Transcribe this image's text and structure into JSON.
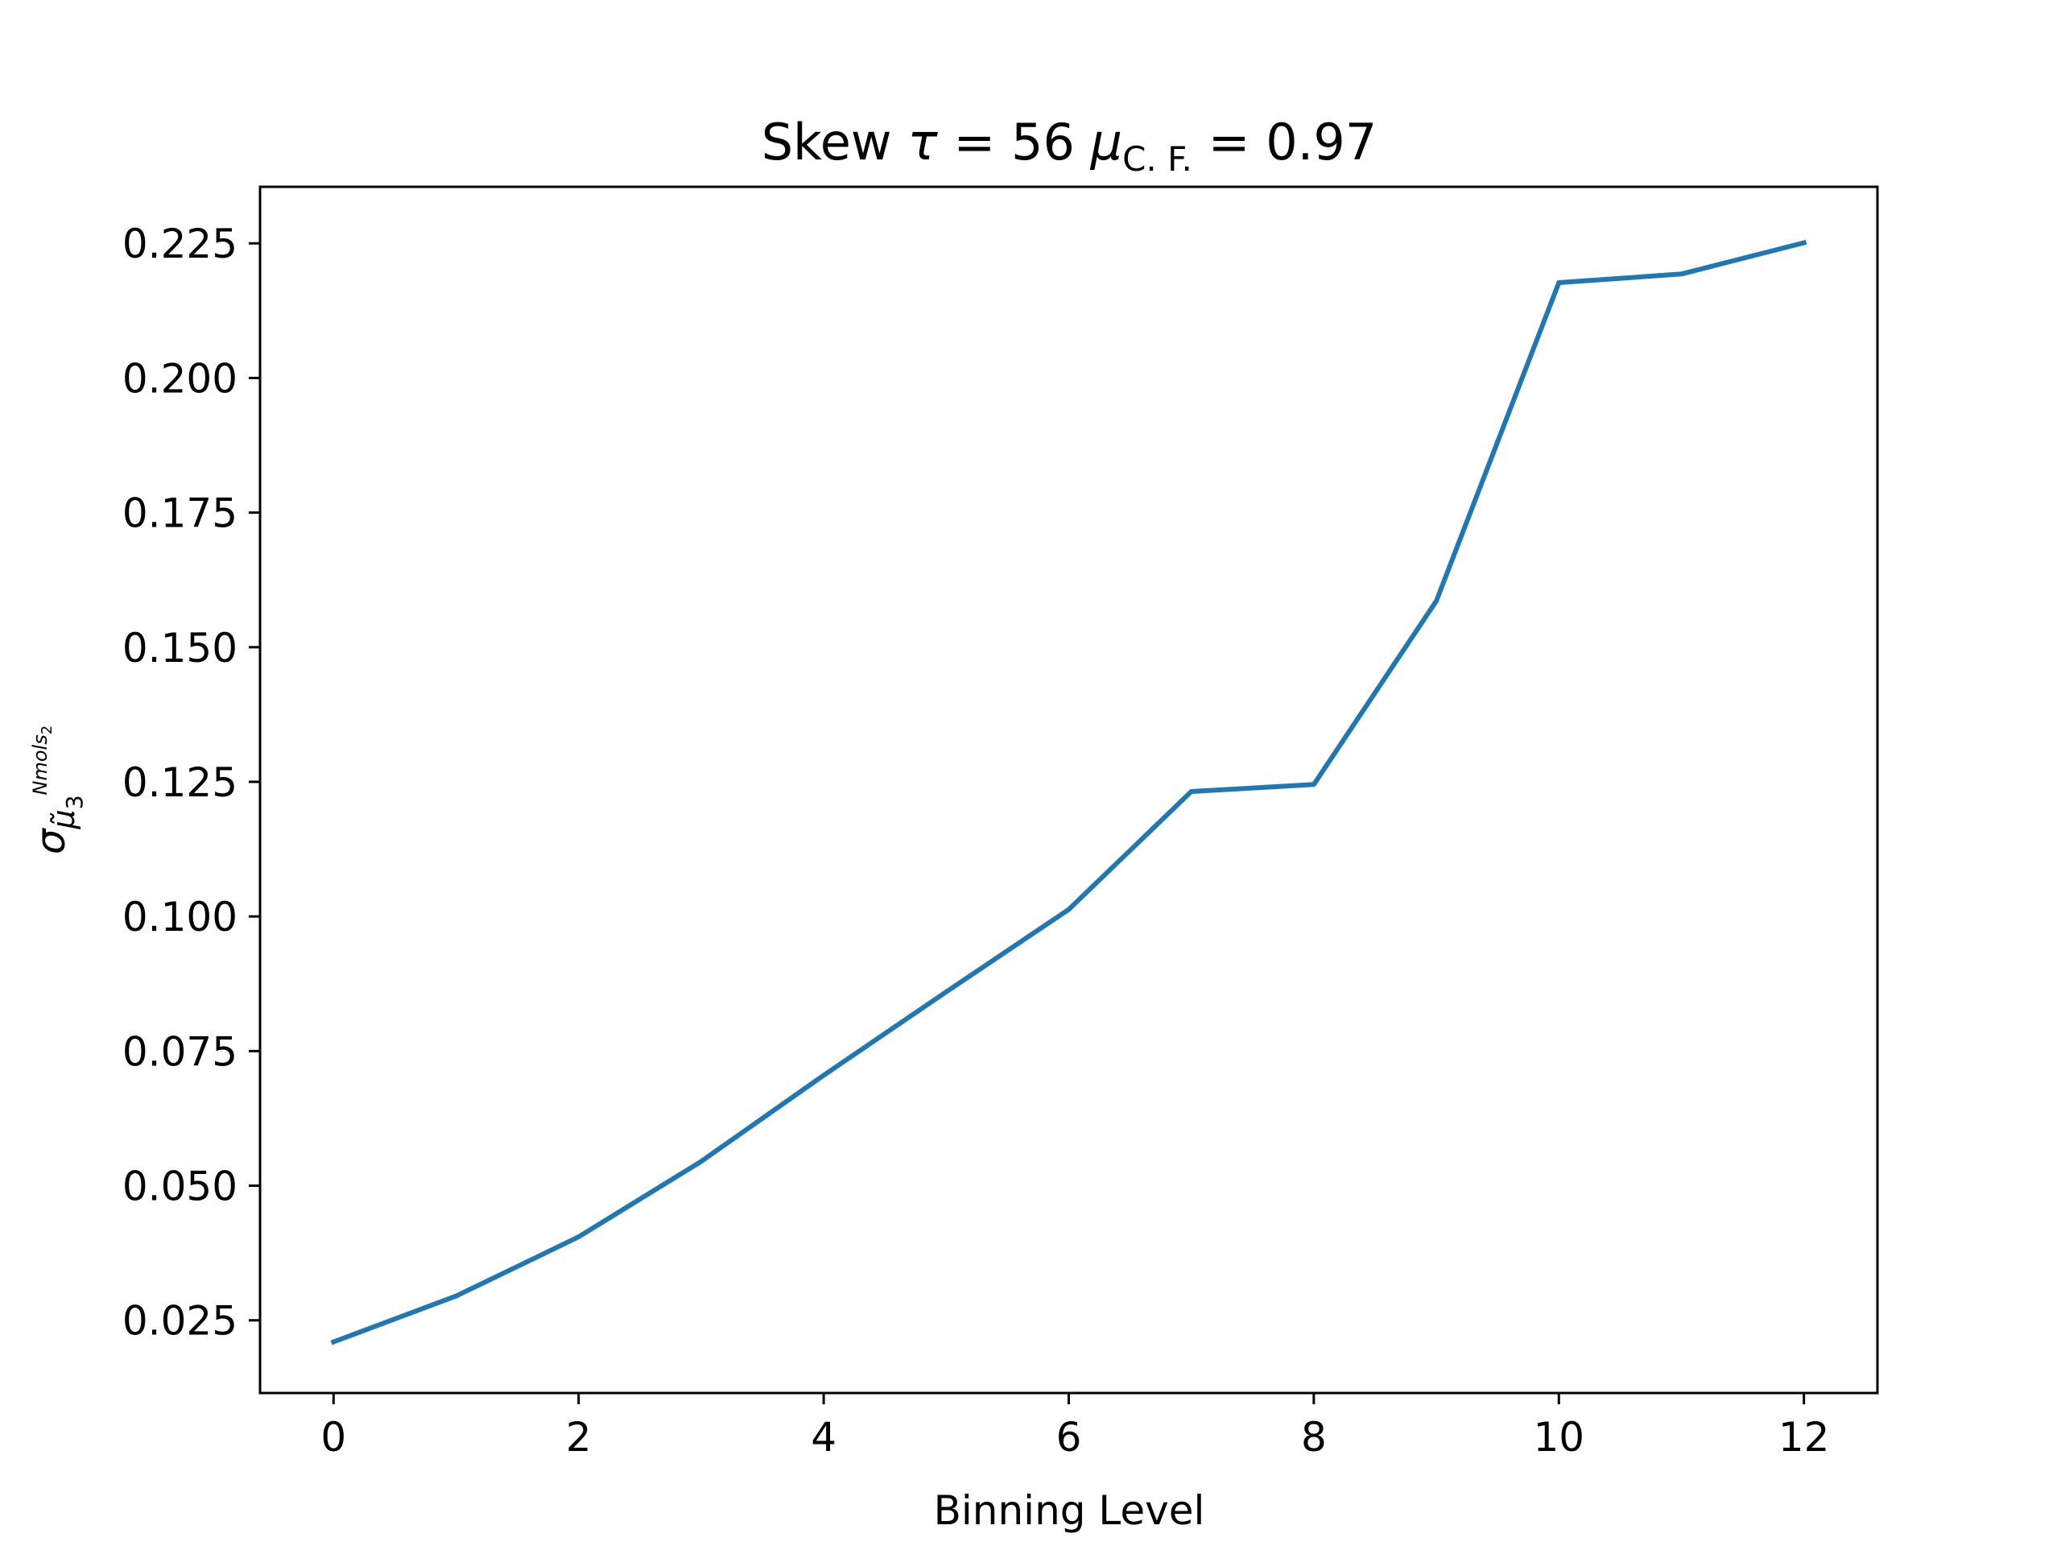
{
  "chart_data": {
    "type": "line",
    "title": "Skew τ = 56 μC. F. = 0.97",
    "title_parts": {
      "prefix": "Skew ",
      "tau_symbol": "τ",
      "tau_eq": " = 56 ",
      "mu_symbol": "μ",
      "mu_subscript": "C. F.",
      "mu_eq": " = 0.97"
    },
    "xlabel": "Binning Level",
    "ylabel_parts": {
      "sigma": "σ",
      "mu": "μ̃",
      "mu_subscript": "3",
      "superscript": "Nmols",
      "superscript_subscript": "2"
    },
    "xlim": [
      -0.6,
      12.6
    ],
    "ylim": [
      0.0115,
      0.2355
    ],
    "xticks": [
      0,
      2,
      4,
      6,
      8,
      10,
      12
    ],
    "xtick_labels": [
      "0",
      "2",
      "4",
      "6",
      "8",
      "10",
      "12"
    ],
    "yticks": [
      0.025,
      0.05,
      0.075,
      0.1,
      0.125,
      0.15,
      0.175,
      0.2,
      0.225
    ],
    "ytick_labels": [
      "0.025",
      "0.050",
      "0.075",
      "0.100",
      "0.125",
      "0.150",
      "0.175",
      "0.200",
      "0.225"
    ],
    "grid": false,
    "series": [
      {
        "color": "#1f77b4",
        "x": [
          0,
          1,
          2,
          3,
          4,
          5,
          6,
          7,
          8,
          9,
          10,
          11,
          12
        ],
        "y": [
          0.021,
          0.0295,
          0.0405,
          0.0545,
          0.0705,
          0.086,
          0.1013,
          0.1232,
          0.1245,
          0.1586,
          0.2177,
          0.2193,
          0.2251
        ]
      }
    ]
  }
}
